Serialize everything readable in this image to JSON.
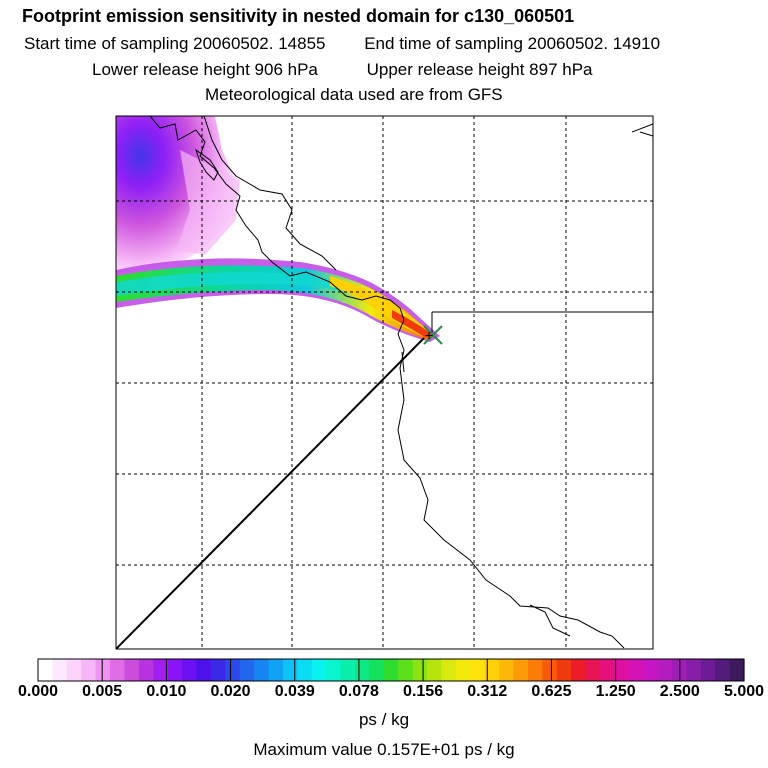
{
  "title": "Footprint emission sensitivity in nested domain for c130_060501",
  "sampling": {
    "start": "Start time of sampling 20060502. 14855",
    "end": "End time of sampling 20060502. 14910"
  },
  "release": {
    "lower": "Lower release height  906 hPa",
    "upper": "Upper release height  897 hPa"
  },
  "met_source": "Meteorological data used are from GFS",
  "colorbar": {
    "unit": "ps / kg",
    "tick_labels": [
      "0.000",
      "0.005",
      "0.010",
      "0.020",
      "0.039",
      "0.078",
      "0.156",
      "0.312",
      "0.625",
      "1.250",
      "2.500",
      "5.000"
    ],
    "colors": [
      "#ffffff",
      "#fde9fd",
      "#fbd3fb",
      "#f7b6f7",
      "#ef93f1",
      "#e06de6",
      "#cc4ddc",
      "#b733e0",
      "#a21ef0",
      "#8a14f5",
      "#6a10f2",
      "#4d12eb",
      "#3a2ae8",
      "#2c48ea",
      "#2266ee",
      "#1685f1",
      "#10a3f4",
      "#0cc2f6",
      "#0adcf4",
      "#08f2ee",
      "#08f5cf",
      "#0aefaa",
      "#0ee882",
      "#14e15c",
      "#2edc2e",
      "#5ce01c",
      "#8ae314",
      "#b6e50e",
      "#d9ea0c",
      "#f2ea0a",
      "#fde30a",
      "#fdd008",
      "#fdb808",
      "#fd9c08",
      "#fc7c0a",
      "#f85a0c",
      "#f23a10",
      "#ec1c28",
      "#e81454",
      "#e4107e",
      "#de10a2",
      "#d412b8",
      "#c616c4",
      "#b41cc0",
      "#9e1eb6",
      "#861eaa",
      "#6e1c96",
      "#541c7a",
      "#3c1a5c"
    ]
  },
  "max_value": "Maximum value  0.157E+01 ps / kg",
  "map": {
    "receptor_symbol_color": "#2a8a4a",
    "max_marker_color": "#000000"
  }
}
